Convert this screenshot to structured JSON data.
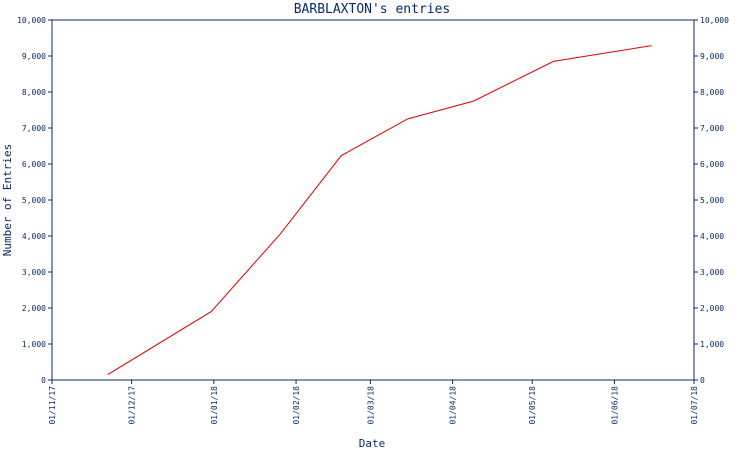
{
  "chart_data": {
    "type": "line",
    "title": "BARBLAXTON's entries",
    "xlabel": "Date",
    "ylabel": "Number of Entries",
    "x_ticks": [
      "01/11/17",
      "01/12/17",
      "01/01/18",
      "01/02/18",
      "01/03/18",
      "01/04/18",
      "01/05/18",
      "01/06/18",
      "01/07/18"
    ],
    "y_ticks": [
      "0",
      "1,000",
      "2,000",
      "3,000",
      "4,000",
      "5,000",
      "6,000",
      "7,000",
      "8,000",
      "9,000",
      "10,000"
    ],
    "ylim": [
      0,
      10000
    ],
    "xlim": [
      "2017-11-01",
      "2018-07-01"
    ],
    "grid": false,
    "right_axis": true,
    "series": [
      {
        "color": "#e00000",
        "x": [
          "2017-11-22",
          "2017-12-31",
          "2018-01-26",
          "2018-02-18",
          "2018-03-15",
          "2018-04-09",
          "2018-05-09",
          "2018-06-15"
        ],
        "y": [
          150,
          1900,
          4050,
          6230,
          7250,
          7750,
          8850,
          9290
        ]
      }
    ]
  }
}
